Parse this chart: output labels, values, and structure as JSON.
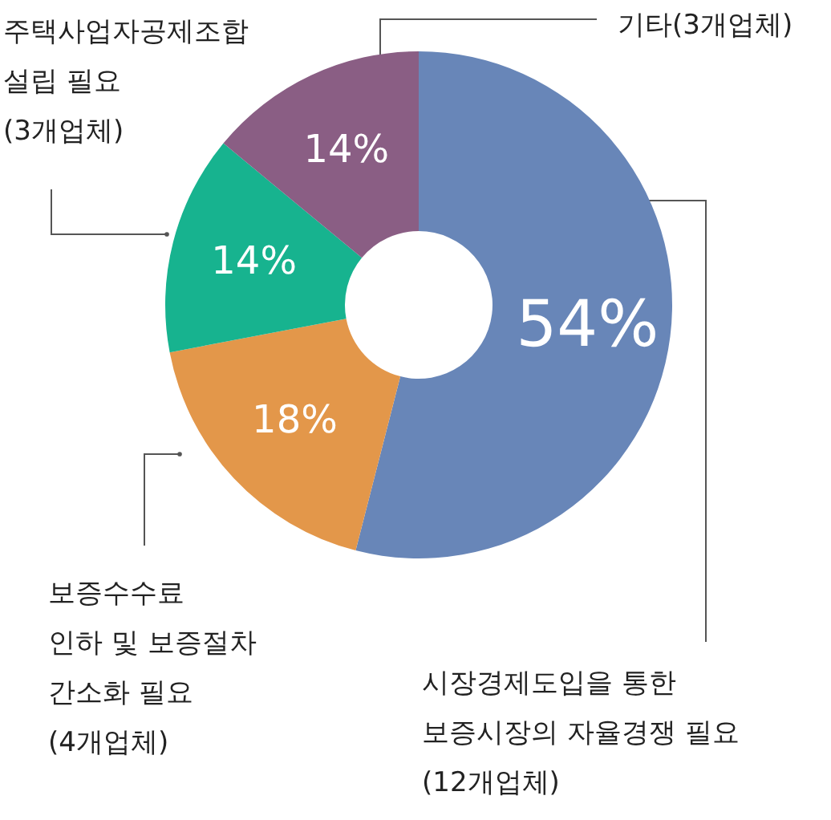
{
  "chart_data": {
    "type": "donut",
    "categories": [
      "시장경제도입을 통한\n보증시장의 자율경쟁 필요\n(12개업체)",
      "보증수수료\n인하 및 보증절차\n간소화 필요\n(4개업체)",
      "주택사업자공제조합\n설립 필요\n(3개업체)",
      "기타(3개업체)"
    ],
    "values": [
      54,
      18,
      14,
      14
    ],
    "colors": [
      "#6886b8",
      "#e3974a",
      "#17b38f",
      "#8a5e84"
    ],
    "value_labels": [
      "54%",
      "18%",
      "14%",
      "14%"
    ]
  }
}
